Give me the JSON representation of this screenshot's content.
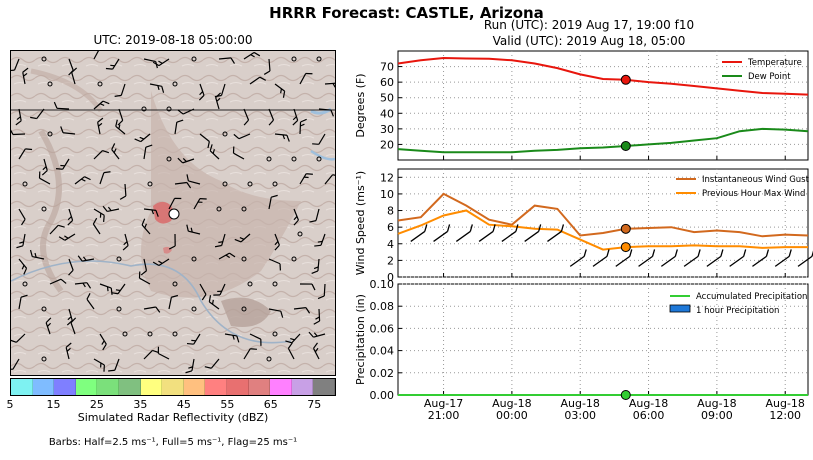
{
  "suptitle": "HRRR Forecast: CASTLE, Arizona",
  "map": {
    "title": "UTC: 2019-08-18 05:00:00",
    "colorbar_colors": [
      "#7ef2f2",
      "#7fbcff",
      "#7f7fff",
      "#7fff7f",
      "#7be07b",
      "#80c080",
      "#ffff7f",
      "#f2e07f",
      "#ffc07f",
      "#ff8080",
      "#e87070",
      "#e08080",
      "#ff80ff",
      "#c8a0e6",
      "#808080"
    ],
    "colorbar_ticks": [
      "5",
      "15",
      "25",
      "35",
      "45",
      "55",
      "65",
      "75"
    ],
    "colorbar_label": "Simulated Radar Reflectivity (dBZ)",
    "barbs_note": "Barbs: Half=2.5 ms⁻¹, Full=5 ms⁻¹, Flag=25 ms⁻¹"
  },
  "run": {
    "line1": "Run (UTC): 2019 Aug 17, 19:00 f10",
    "line2": "Valid (UTC): 2019 Aug 18, 05:00"
  },
  "chart_data": [
    {
      "type": "line",
      "panel": "temperature",
      "ylabel": "Degrees (F)",
      "ylim": [
        10,
        80
      ],
      "yticks": [
        20,
        30,
        40,
        50,
        60,
        70
      ],
      "x_hours": [
        19,
        20,
        21,
        22,
        23,
        24,
        25,
        26,
        27,
        28,
        29,
        30,
        31,
        32,
        33,
        34,
        35,
        36,
        37
      ],
      "xticks": [
        "Aug-17\n21:00",
        "Aug-18\n00:00",
        "Aug-18\n03:00",
        "Aug-18\n06:00",
        "Aug-18\n09:00",
        "Aug-18\n12:00"
      ],
      "series": [
        {
          "name": "Temperature",
          "color": "#e8160d",
          "values": [
            72,
            74,
            75.5,
            75.2,
            75,
            74,
            72,
            69,
            65,
            62,
            61.5,
            60,
            59,
            57.5,
            56,
            54.5,
            53,
            52.5,
            52
          ]
        },
        {
          "name": "Dew Point",
          "color": "#1a8a1a",
          "values": [
            17,
            16,
            15,
            15,
            15,
            15,
            16,
            16.5,
            17.5,
            18,
            19,
            20,
            21,
            22.5,
            24,
            28.5,
            30,
            29.5,
            28.5
          ]
        }
      ],
      "highlight_hour": 29
    },
    {
      "type": "line",
      "panel": "wind",
      "ylabel": "Wind Speed (ms⁻¹)",
      "ylim": [
        0,
        13
      ],
      "yticks": [
        0,
        2,
        4,
        6,
        8,
        10,
        12
      ],
      "x_hours": [
        19,
        20,
        21,
        22,
        23,
        24,
        25,
        26,
        27,
        28,
        29,
        30,
        31,
        32,
        33,
        34,
        35,
        36,
        37
      ],
      "series": [
        {
          "name": "Instantaneous Wind Gust",
          "color": "#d2691e",
          "values": [
            6.8,
            7.2,
            10,
            8.6,
            6.9,
            6.3,
            8.6,
            8.2,
            5,
            5.3,
            5.8,
            5.9,
            6,
            5.4,
            5.6,
            5.4,
            4.9,
            5.1,
            5
          ]
        },
        {
          "name": "Previous Hour Max Wind",
          "color": "#ff8c00",
          "values": [
            5.2,
            6.2,
            7.4,
            8,
            6.3,
            6.1,
            5.8,
            5.7,
            4.5,
            3.3,
            3.6,
            3.7,
            3.7,
            3.8,
            3.7,
            3.7,
            3.5,
            3.6,
            3.6
          ]
        }
      ],
      "highlight_hour": 29
    },
    {
      "type": "line",
      "panel": "precip",
      "ylabel": "Precipitation (in)",
      "ylim": [
        0,
        0.1
      ],
      "yticks": [
        0.0,
        0.02,
        0.04,
        0.06,
        0.08,
        0.1
      ],
      "x_hours": [
        19,
        20,
        21,
        22,
        23,
        24,
        25,
        26,
        27,
        28,
        29,
        30,
        31,
        32,
        33,
        34,
        35,
        36,
        37
      ],
      "series": [
        {
          "name": "Accumulated Precipitation",
          "color": "#32cd32",
          "values": [
            0,
            0,
            0,
            0,
            0,
            0,
            0,
            0,
            0,
            0,
            0,
            0,
            0,
            0,
            0,
            0,
            0,
            0,
            0
          ]
        },
        {
          "name": "1 hour Precipitation",
          "color": "#1e78d8",
          "values": [
            0,
            0,
            0,
            0,
            0,
            0,
            0,
            0,
            0,
            0,
            0,
            0,
            0,
            0,
            0,
            0,
            0,
            0,
            0
          ]
        }
      ],
      "highlight_hour": 29
    }
  ]
}
